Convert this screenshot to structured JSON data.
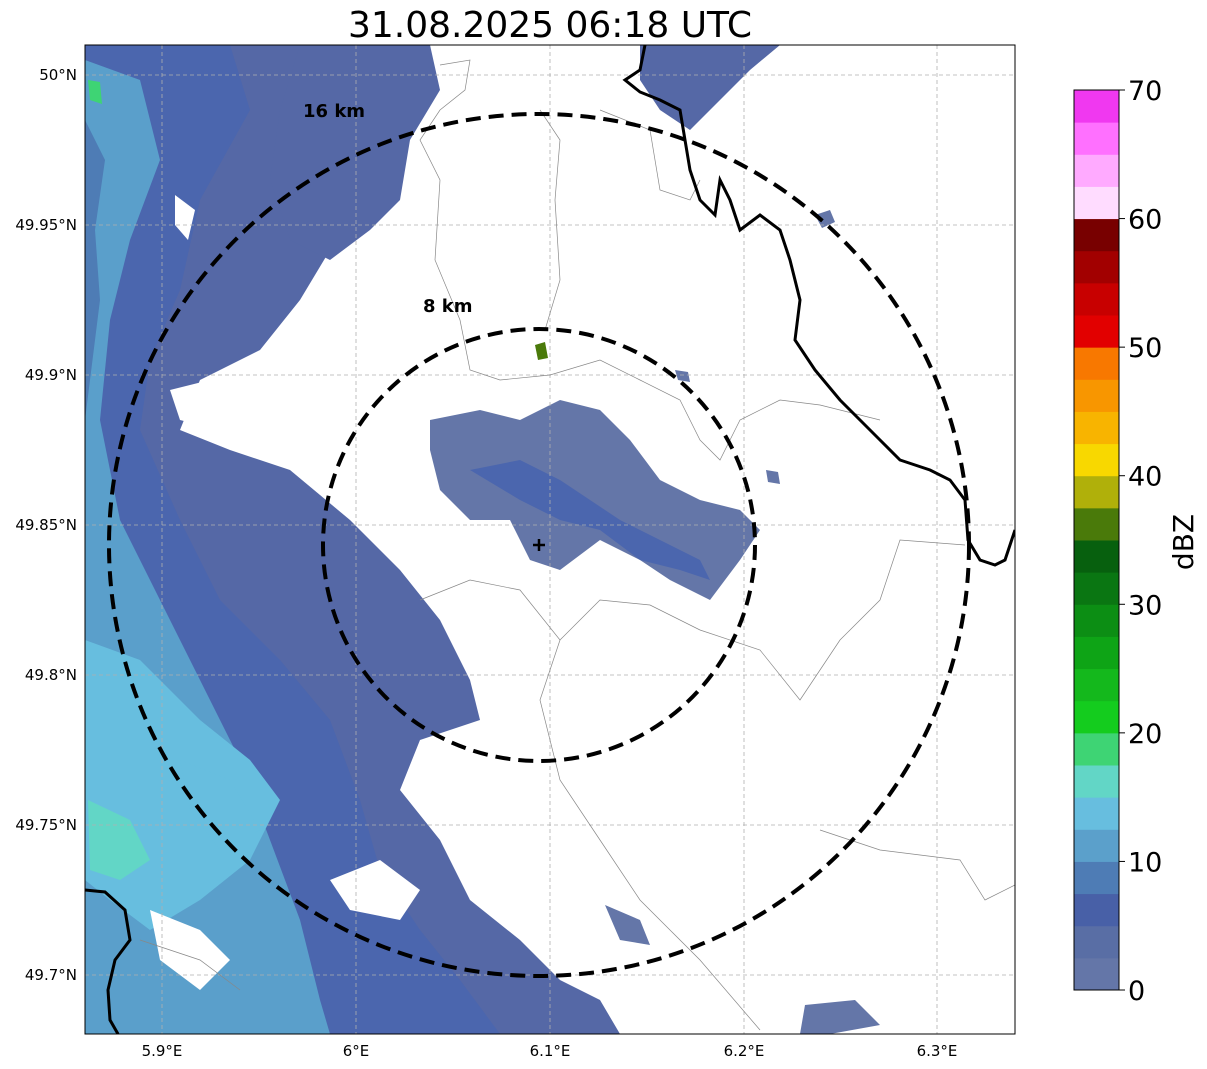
{
  "title": "31.08.2025 06:18 UTC",
  "map": {
    "lon_ticks": [
      "5.9°E",
      "6°E",
      "6.1°E",
      "6.2°E",
      "6.3°E"
    ],
    "lat_ticks": [
      "50°N",
      "49.95°N",
      "49.9°N",
      "49.85°N",
      "49.8°N",
      "49.75°N",
      "49.7°N"
    ],
    "grid": true,
    "radar_site_marker": "plus-icon",
    "range_rings": [
      {
        "label": "8 km",
        "radius_km": 8
      },
      {
        "label": "16 km",
        "radius_km": 16
      }
    ]
  },
  "colorbar": {
    "label": "dBZ",
    "ticks": [
      "0",
      "10",
      "20",
      "30",
      "40",
      "50",
      "60",
      "70"
    ],
    "colors": [
      "#6476a8",
      "#596ea5",
      "#4860a7",
      "#4e7cb5",
      "#5ba0cb",
      "#67bedf",
      "#62d6c6",
      "#3ed474",
      "#14cc1e",
      "#14b81c",
      "#0ea416",
      "#0c8e14",
      "#0a7612",
      "#07600e",
      "#4a7a0a",
      "#b0b00a",
      "#f8d800",
      "#f8b400",
      "#f89600",
      "#f87800",
      "#e20000",
      "#c80000",
      "#a20000",
      "#780000",
      "#ffdcff",
      "#ffaaff",
      "#ff70ff",
      "#f038f0"
    ]
  }
}
